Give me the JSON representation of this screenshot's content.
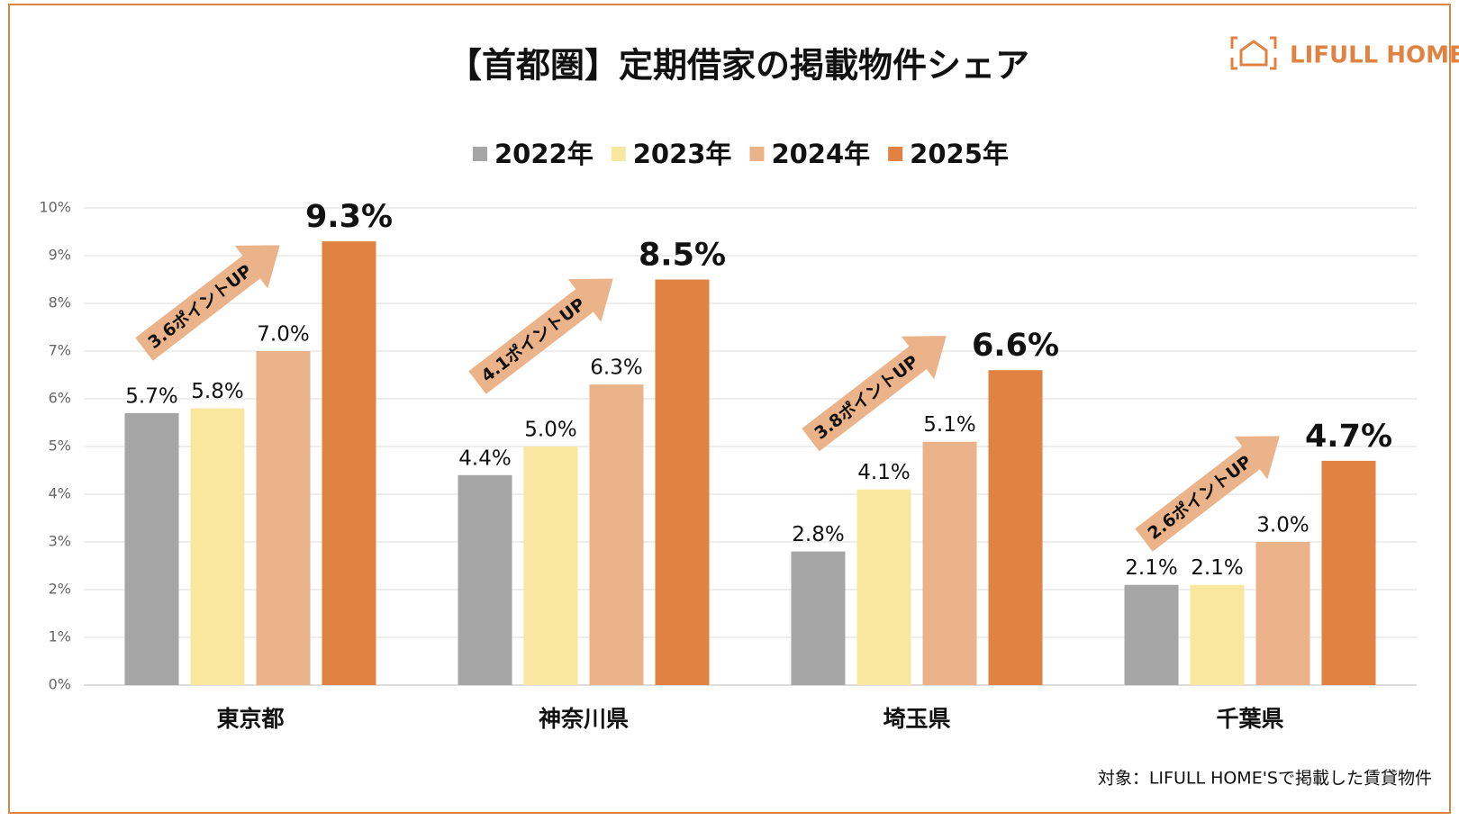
{
  "chart_data": {
    "type": "bar",
    "title": "【首都圏】定期借家の掲載物件シェア",
    "logo": "LIFULL HOME'S",
    "footnote": "対象：LIFULL HOME'Sで掲載した賃貸物件",
    "categories": [
      "東京都",
      "神奈川県",
      "埼玉県",
      "千葉県"
    ],
    "series": [
      {
        "name": "2022年",
        "color": "#a6a6a6",
        "values": [
          5.7,
          4.4,
          2.8,
          2.1
        ],
        "value_labels": [
          "5.7%",
          "4.4%",
          "2.8%",
          "2.1%"
        ]
      },
      {
        "name": "2023年",
        "color": "#f9e79f",
        "values": [
          5.8,
          5.0,
          4.1,
          2.1
        ],
        "value_labels": [
          "5.8%",
          "5.0%",
          "4.1%",
          "2.1%"
        ]
      },
      {
        "name": "2024年",
        "color": "#ebb38a",
        "values": [
          7.0,
          6.3,
          5.1,
          3.0
        ],
        "value_labels": [
          "7.0%",
          "6.3%",
          "5.1%",
          "3.0%"
        ]
      },
      {
        "name": "2025年",
        "color": "#e08342",
        "values": [
          9.3,
          8.5,
          6.6,
          4.7
        ],
        "value_labels": [
          "9.3%",
          "8.5%",
          "6.6%",
          "4.7%"
        ]
      }
    ],
    "annotations": [
      "3.6ポイントUP",
      "4.1ポイントUP",
      "3.8ポイントUP",
      "2.6ポイントUP"
    ],
    "ylim": [
      0,
      10
    ],
    "yticks": [
      {
        "value": 0,
        "label": "0%"
      },
      {
        "value": 1,
        "label": "1%"
      },
      {
        "value": 2,
        "label": "2%"
      },
      {
        "value": 3,
        "label": "3%"
      },
      {
        "value": 4,
        "label": "4%"
      },
      {
        "value": 5,
        "label": "5%"
      },
      {
        "value": 6,
        "label": "6%"
      },
      {
        "value": 7,
        "label": "7%"
      },
      {
        "value": 8,
        "label": "8%"
      },
      {
        "value": 9,
        "label": "9%"
      },
      {
        "value": 10,
        "label": "10%"
      }
    ],
    "grid": true,
    "legend": "top"
  }
}
